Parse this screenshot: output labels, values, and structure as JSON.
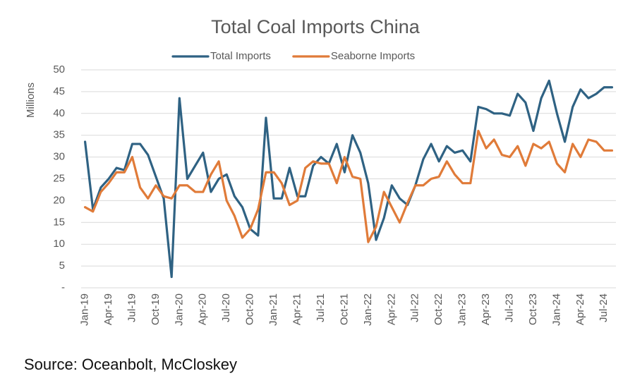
{
  "chart_data": {
    "type": "line",
    "title": "Total Coal Imports China",
    "y_label": "Millions",
    "source": "Source: Oceanbolt, McCloskey",
    "categories": [
      "Jan-19",
      null,
      null,
      "Apr-19",
      null,
      null,
      "Jul-19",
      null,
      null,
      "Oct-19",
      null,
      null,
      "Jan-20",
      null,
      null,
      "Apr-20",
      null,
      null,
      "Jul-20",
      null,
      null,
      "Oct-20",
      null,
      null,
      "Jan-21",
      null,
      null,
      "Apr-21",
      null,
      null,
      "Jul-21",
      null,
      null,
      "Oct-21",
      null,
      null,
      "Jan-22",
      null,
      null,
      "Apr-22",
      null,
      null,
      "Jul-22",
      null,
      null,
      "Oct-22",
      null,
      null,
      "Jan-23",
      null,
      null,
      "Apr-23",
      null,
      null,
      "Jul-23",
      null,
      null,
      "Oct-23",
      null,
      null,
      "Jan-24",
      null,
      null,
      "Apr-24",
      null,
      null,
      "Jul-24",
      null
    ],
    "series": [
      {
        "name": "Total Imports",
        "color": "#2f6283",
        "values": [
          33.5,
          18,
          23,
          25,
          27.5,
          27,
          33,
          33,
          30.5,
          25.5,
          20.5,
          2.5,
          43.5,
          25,
          28,
          31,
          22,
          25,
          26,
          21,
          18.5,
          13.5,
          12,
          39,
          20.5,
          20.5,
          27.5,
          21,
          21,
          28,
          30,
          28.5,
          33,
          26.5,
          35,
          31,
          24,
          11,
          16,
          23.5,
          20.5,
          19,
          23.5,
          29.5,
          33,
          29,
          32.5,
          31,
          31.5,
          29,
          41.5,
          41,
          40,
          40,
          39.5,
          44.5,
          42.5,
          36,
          43.5,
          47.5,
          40,
          33.5,
          41.5,
          45.5,
          43.5,
          44.5,
          46,
          46
        ]
      },
      {
        "name": "Seaborne Imports",
        "color": "#e07b39",
        "values": [
          18.5,
          17.5,
          22,
          24,
          26.5,
          26.5,
          30,
          23,
          20.5,
          23.5,
          21,
          20.5,
          23.5,
          23.5,
          22,
          22,
          26,
          29,
          20,
          16.5,
          11.5,
          13.5,
          18,
          26.5,
          26.5,
          24,
          19,
          20,
          27.5,
          29,
          28.5,
          28.5,
          24,
          30,
          25.5,
          25,
          10.5,
          14,
          22,
          18.5,
          15,
          19.5,
          23.5,
          23.5,
          25,
          25.5,
          29,
          26,
          24,
          24,
          36,
          32,
          34,
          30.5,
          30,
          32.5,
          28,
          33,
          32,
          33.5,
          28.5,
          26.5,
          33,
          30,
          34,
          33.5,
          31.5,
          31.5
        ]
      }
    ],
    "ylim": [
      0,
      50
    ],
    "yticks": [
      {
        "value": 0,
        "label": "-"
      },
      5,
      10,
      15,
      20,
      25,
      30,
      35,
      40,
      45,
      50
    ],
    "grid": true
  }
}
